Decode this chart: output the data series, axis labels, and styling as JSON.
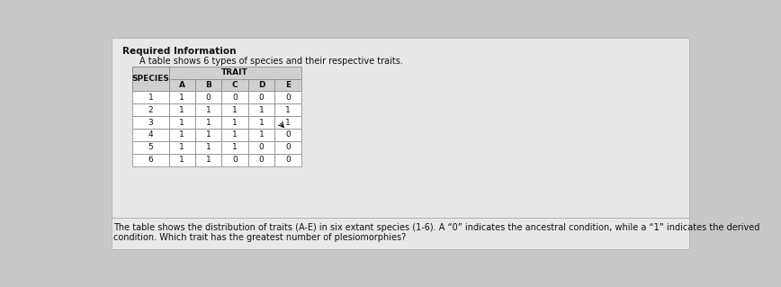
{
  "title": "Required Information",
  "subtitle": "A table shows 6 types of species and their respective traits.",
  "col_headers": [
    "SPECIES",
    "A",
    "B",
    "C",
    "D",
    "E"
  ],
  "rows": [
    [
      "1",
      "1",
      "0",
      "0",
      "0",
      "0"
    ],
    [
      "2",
      "1",
      "1",
      "1",
      "1",
      "1"
    ],
    [
      "3",
      "1",
      "1",
      "1",
      "1",
      "1"
    ],
    [
      "4",
      "1",
      "1",
      "1",
      "1",
      "0"
    ],
    [
      "5",
      "1",
      "1",
      "1",
      "0",
      "0"
    ],
    [
      "6",
      "1",
      "1",
      "0",
      "0",
      "0"
    ]
  ],
  "footer_line1": "The table shows the distribution of traits (A-E) in six extant species (1-6). A “0” indicates the ancestral condition, while a “1” indicates the derived",
  "footer_line2": "condition. Which trait has the greatest number of plesiomorphies?",
  "bg_color": "#c8c8c8",
  "panel_color": "#e8e8e8",
  "table_bg": "#f0f0f0",
  "header_bg": "#d0d0d0",
  "cell_bg": "#f5f5f5",
  "border_color": "#808080",
  "text_color": "#111111",
  "title_fontsize": 7.5,
  "subtitle_fontsize": 7,
  "table_fontsize": 6.5,
  "footer_fontsize": 7
}
